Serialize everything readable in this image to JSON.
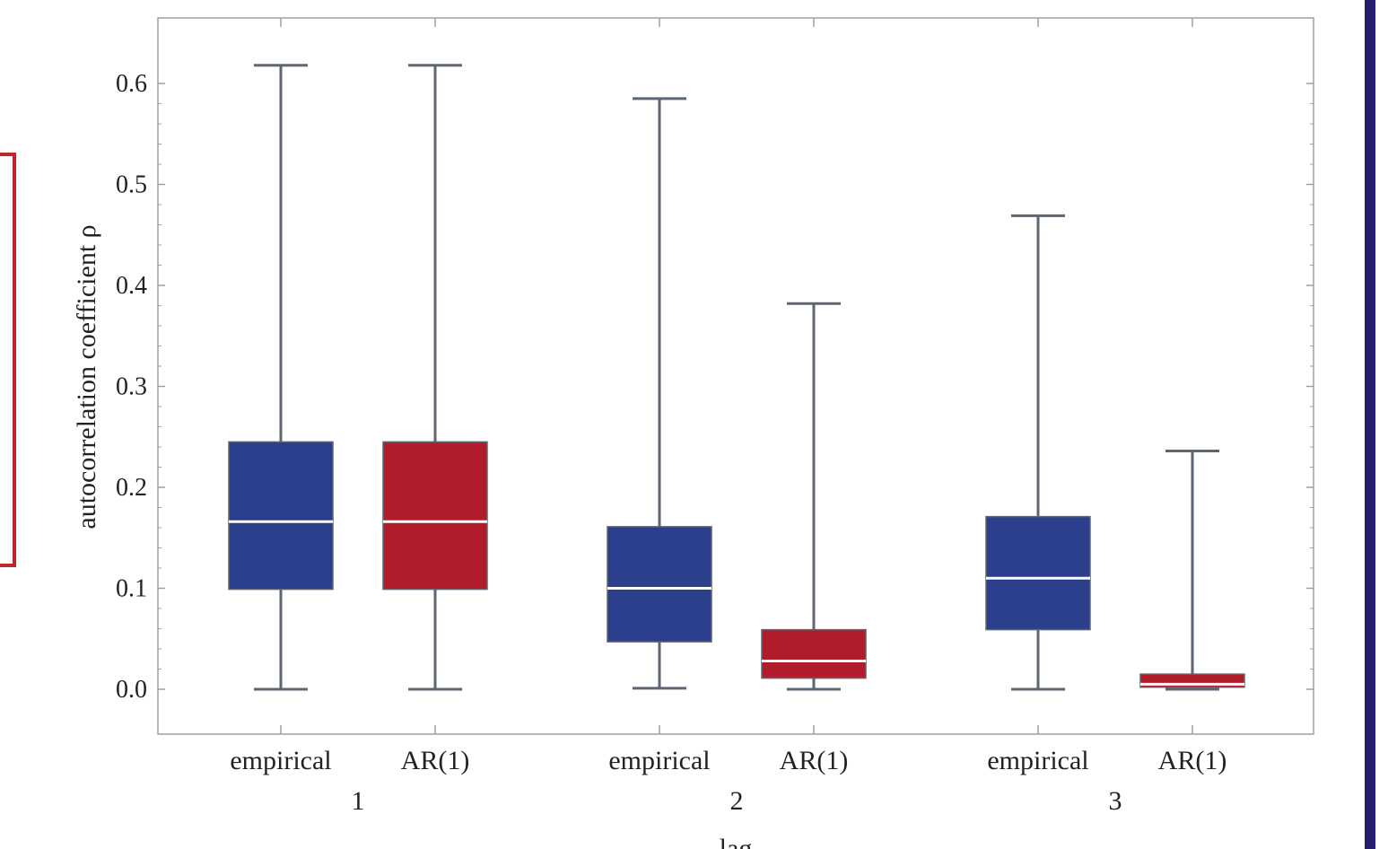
{
  "colors": {
    "empirical": "#2b3f8c",
    "ar1": "#b01c29",
    "whisker": "#5d6672",
    "median": "#ffffff",
    "frame": "#9aa0a6",
    "left_bracket": "#c0262d",
    "right_bar": "#241f6e"
  },
  "chart_data": {
    "type": "boxplot",
    "title": "",
    "xlabel": "lag",
    "ylabel": "autocorrelation coefficient ρ",
    "ylim": [
      -0.045,
      0.665
    ],
    "yticks": [
      "0.0",
      "0.1",
      "0.2",
      "0.3",
      "0.4",
      "0.5",
      "0.6"
    ],
    "groups": [
      {
        "label": "1",
        "boxes": [
          {
            "label": "empirical",
            "series": "empirical",
            "min": 0.0,
            "q1": 0.099,
            "median": 0.166,
            "q3": 0.245,
            "max": 0.618
          },
          {
            "label": "AR(1)",
            "series": "ar1",
            "min": 0.0,
            "q1": 0.099,
            "median": 0.166,
            "q3": 0.245,
            "max": 0.618
          }
        ]
      },
      {
        "label": "2",
        "boxes": [
          {
            "label": "empirical",
            "series": "empirical",
            "min": 0.001,
            "q1": 0.047,
            "median": 0.1,
            "q3": 0.161,
            "max": 0.585
          },
          {
            "label": "AR(1)",
            "series": "ar1",
            "min": 0.0,
            "q1": 0.011,
            "median": 0.028,
            "q3": 0.059,
            "max": 0.382
          }
        ]
      },
      {
        "label": "3",
        "boxes": [
          {
            "label": "empirical",
            "series": "empirical",
            "min": 0.0,
            "q1": 0.059,
            "median": 0.11,
            "q3": 0.171,
            "max": 0.469
          },
          {
            "label": "AR(1)",
            "series": "ar1",
            "min": 0.0,
            "q1": 0.002,
            "median": 0.005,
            "q3": 0.015,
            "max": 0.236
          }
        ]
      }
    ]
  }
}
